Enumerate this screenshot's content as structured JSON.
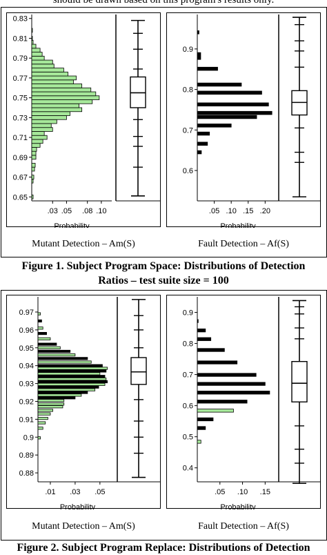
{
  "top_text": "should be drawn based on this program's results only.",
  "figure1": {
    "caption_line1": "Figure 1. Subject Program Space: Distributions of Detection",
    "caption_line2": "Ratios – test suite size = 100",
    "left_caption": "Mutant Detection – Am(S)",
    "right_caption": "Fault Detection – Af(S)"
  },
  "figure2": {
    "caption": "Figure 2. Subject Program Replace: Distributions of Detection",
    "left_caption": "Mutant Detection – Am(S)",
    "right_caption": "Fault Detection – Af(S)"
  },
  "colors": {
    "green_bar": "#a6e89a",
    "black_bar": "#000000"
  },
  "chart_data": [
    {
      "id": "fig1-mutant",
      "type": "histogram",
      "orientation": "horizontal",
      "xlabel": "Probability",
      "xtick_labels": [
        ".03",
        ".05",
        ".08",
        ".10"
      ],
      "xticks": [
        0.03,
        0.05,
        0.08,
        0.1
      ],
      "xlim": [
        0,
        0.115
      ],
      "ytick_labels": [
        "0.65",
        "0.67",
        "0.69",
        "0.71",
        "0.73",
        "0.75",
        "0.77",
        "0.79",
        "0.81",
        "0.83"
      ],
      "yticks": [
        0.65,
        0.67,
        0.69,
        0.71,
        0.73,
        0.75,
        0.77,
        0.79,
        0.81,
        0.83
      ],
      "ylim": [
        0.646,
        0.834
      ],
      "bin_width": 0.004,
      "bar_color": "green",
      "bins": [
        [
          0.65,
          0.002
        ],
        [
          0.666,
          0.002
        ],
        [
          0.67,
          0.003
        ],
        [
          0.678,
          0.004
        ],
        [
          0.682,
          0.005
        ],
        [
          0.69,
          0.006
        ],
        [
          0.694,
          0.006
        ],
        [
          0.698,
          0.007
        ],
        [
          0.702,
          0.012
        ],
        [
          0.706,
          0.016
        ],
        [
          0.71,
          0.022
        ],
        [
          0.714,
          0.018
        ],
        [
          0.718,
          0.03
        ],
        [
          0.722,
          0.028
        ],
        [
          0.726,
          0.036
        ],
        [
          0.73,
          0.05
        ],
        [
          0.734,
          0.055
        ],
        [
          0.738,
          0.072
        ],
        [
          0.742,
          0.068
        ],
        [
          0.746,
          0.087
        ],
        [
          0.75,
          0.097
        ],
        [
          0.754,
          0.092
        ],
        [
          0.758,
          0.085
        ],
        [
          0.762,
          0.072
        ],
        [
          0.766,
          0.06
        ],
        [
          0.77,
          0.064
        ],
        [
          0.774,
          0.052
        ],
        [
          0.778,
          0.046
        ],
        [
          0.782,
          0.032
        ],
        [
          0.786,
          0.03
        ],
        [
          0.79,
          0.018
        ],
        [
          0.794,
          0.015
        ],
        [
          0.798,
          0.012
        ],
        [
          0.802,
          0.006
        ],
        [
          0.806,
          0.002
        ],
        [
          0.81,
          0.001
        ],
        [
          0.818,
          0.001
        ]
      ],
      "boxplot": {
        "min": 0.651,
        "q1": 0.74,
        "median": 0.755,
        "q3": 0.771,
        "max": 0.828,
        "whisker_ticks": [
          0.68,
          0.701,
          0.711,
          0.728,
          0.779,
          0.799,
          0.815
        ]
      }
    },
    {
      "id": "fig1-fault",
      "type": "histogram",
      "orientation": "horizontal",
      "xlabel": "Probability",
      "xtick_labels": [
        ".05",
        ".10",
        ".15",
        ".20"
      ],
      "xticks": [
        0.05,
        0.1,
        0.15,
        0.2
      ],
      "xlim": [
        0,
        0.24
      ],
      "ytick_labels": [
        "0.6",
        "0.7",
        "0.8",
        "0.9"
      ],
      "yticks": [
        0.6,
        0.7,
        0.8,
        0.9
      ],
      "ylim": [
        0.525,
        0.985
      ],
      "bin_width": 0.008,
      "bar_color": "black",
      "bins": [
        [
          0.645,
          0.012
        ],
        [
          0.666,
          0.03
        ],
        [
          0.691,
          0.036
        ],
        [
          0.711,
          0.1
        ],
        [
          0.732,
          0.175
        ],
        [
          0.742,
          0.22
        ],
        [
          0.763,
          0.21
        ],
        [
          0.792,
          0.19
        ],
        [
          0.812,
          0.13
        ],
        [
          0.851,
          0.06
        ],
        [
          0.878,
          0.01
        ],
        [
          0.887,
          0.01
        ],
        [
          0.941,
          0.005
        ]
      ],
      "boxplot": {
        "min": 0.535,
        "q1": 0.737,
        "median": 0.768,
        "q3": 0.797,
        "max": 0.978,
        "whisker_ticks": [
          0.62,
          0.645,
          0.705,
          0.855,
          0.895,
          0.92,
          0.96
        ]
      }
    },
    {
      "id": "fig2-mutant",
      "type": "histogram",
      "orientation": "horizontal",
      "xlabel": "Probability",
      "xtick_labels": [
        ".01",
        ".03",
        ".05"
      ],
      "xticks": [
        0.01,
        0.03,
        0.05
      ],
      "xlim": [
        0,
        0.064
      ],
      "ytick_labels": [
        "0.88",
        "0.89",
        "0.9",
        "0.91",
        "0.92",
        "0.93",
        "0.94",
        "0.95",
        "0.96",
        "0.97"
      ],
      "yticks": [
        0.88,
        0.89,
        0.9,
        0.91,
        0.92,
        0.93,
        0.94,
        0.95,
        0.96,
        0.97
      ],
      "ylim": [
        0.875,
        0.9785
      ],
      "bin_width": 0.0013,
      "bar_color": "mixed",
      "bins": [
        [
          0.8996,
          0.002,
          "g"
        ],
        [
          0.905,
          0.004,
          "g"
        ],
        [
          0.908,
          0.006,
          "g"
        ],
        [
          0.9105,
          0.008,
          "g"
        ],
        [
          0.913,
          0.01,
          "g"
        ],
        [
          0.915,
          0.012,
          "g"
        ],
        [
          0.917,
          0.02,
          "g"
        ],
        [
          0.9185,
          0.021,
          "g"
        ],
        [
          0.9205,
          0.021,
          "g"
        ],
        [
          0.922,
          0.03,
          "k"
        ],
        [
          0.9235,
          0.035,
          "g"
        ],
        [
          0.925,
          0.04,
          "k"
        ],
        [
          0.9265,
          0.046,
          "g"
        ],
        [
          0.928,
          0.049,
          "k"
        ],
        [
          0.9295,
          0.054,
          "g"
        ],
        [
          0.931,
          0.056,
          "k"
        ],
        [
          0.9325,
          0.055,
          "g"
        ],
        [
          0.934,
          0.054,
          "k"
        ],
        [
          0.9355,
          0.05,
          "g"
        ],
        [
          0.937,
          0.055,
          "k"
        ],
        [
          0.9385,
          0.056,
          "g"
        ],
        [
          0.94,
          0.052,
          "k"
        ],
        [
          0.942,
          0.043,
          "g"
        ],
        [
          0.944,
          0.04,
          "k"
        ],
        [
          0.946,
          0.03,
          "g"
        ],
        [
          0.948,
          0.026,
          "k"
        ],
        [
          0.95,
          0.018,
          "g"
        ],
        [
          0.952,
          0.015,
          "k"
        ],
        [
          0.955,
          0.01,
          "g"
        ],
        [
          0.958,
          0.007,
          "k"
        ],
        [
          0.961,
          0.004,
          "g"
        ],
        [
          0.965,
          0.003,
          "k"
        ],
        [
          0.969,
          0.002,
          "g"
        ]
      ],
      "boxplot": {
        "min": 0.8775,
        "q1": 0.9295,
        "median": 0.9365,
        "q3": 0.9445,
        "max": 0.977,
        "whisker_ticks": [
          0.891,
          0.9,
          0.909,
          0.921,
          0.95,
          0.96,
          0.968
        ]
      }
    },
    {
      "id": "fig2-fault",
      "type": "histogram",
      "orientation": "horizontal",
      "xlabel": "Probability",
      "xtick_labels": [
        ".05",
        ".10",
        ".15"
      ],
      "xticks": [
        0.05,
        0.1,
        0.15
      ],
      "xlim": [
        0,
        0.18
      ],
      "ytick_labels": [
        "0.4",
        "0.5",
        "0.6",
        "0.7",
        "0.8",
        "0.9"
      ],
      "yticks": [
        0.4,
        0.5,
        0.6,
        0.7,
        0.8,
        0.9
      ],
      "ylim": [
        0.355,
        0.95
      ],
      "bin_width": 0.01,
      "bar_color": "mixed",
      "bins": [
        [
          0.484,
          0.008,
          "g"
        ],
        [
          0.528,
          0.018,
          "k"
        ],
        [
          0.556,
          0.035,
          "k"
        ],
        [
          0.584,
          0.08,
          "g"
        ],
        [
          0.613,
          0.11,
          "k"
        ],
        [
          0.642,
          0.16,
          "k"
        ],
        [
          0.67,
          0.15,
          "k"
        ],
        [
          0.699,
          0.13,
          "k"
        ],
        [
          0.739,
          0.088,
          "k"
        ],
        [
          0.779,
          0.06,
          "k"
        ],
        [
          0.814,
          0.03,
          "k"
        ],
        [
          0.842,
          0.018,
          "k"
        ],
        [
          0.872,
          0.002,
          "k"
        ]
      ],
      "boxplot": {
        "min": 0.35,
        "q1": 0.612,
        "median": 0.672,
        "q3": 0.742,
        "max": 0.938,
        "whisker_ticks": [
          0.415,
          0.46,
          0.535,
          0.815,
          0.85,
          0.895,
          0.918
        ]
      }
    }
  ]
}
